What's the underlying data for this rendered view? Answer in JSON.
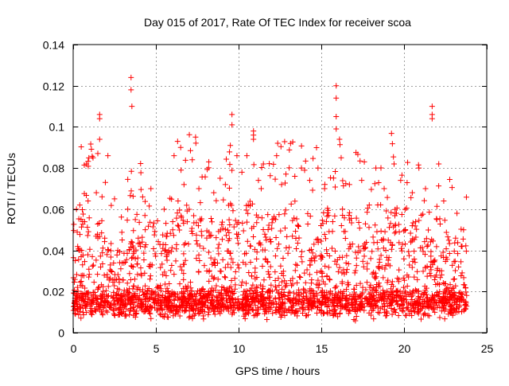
{
  "chart_data": {
    "type": "scatter",
    "title": "Day 015 of 2017, Rate Of TEC Index for receiver scoa",
    "xlabel": "GPS time / hours",
    "ylabel": "ROTI / TECUs",
    "xlim": [
      0,
      25
    ],
    "ylim": [
      0,
      0.14
    ],
    "xticks": [
      0,
      5,
      10,
      15,
      20,
      25
    ],
    "yticks": [
      0,
      0.02,
      0.04,
      0.06,
      0.08,
      0.1,
      0.12,
      0.14
    ],
    "xtick_labels": [
      "0",
      "5",
      "10",
      "15",
      "20",
      "25"
    ],
    "ytick_labels": [
      "0",
      "0.02",
      "0.04",
      "0.06",
      "0.08",
      "0.1",
      "0.12",
      "0.14"
    ],
    "grid": true,
    "legend": "none",
    "marker": "plus",
    "color": "#ff0000",
    "data_x_range": [
      0,
      23.8
    ],
    "series": [
      {
        "values_note_free": true,
        "points": [
          [
            3.5,
            0.124
          ],
          [
            3.5,
            0.118
          ],
          [
            3.55,
            0.11
          ],
          [
            1.6,
            0.106
          ],
          [
            1.6,
            0.104
          ],
          [
            1.6,
            0.094
          ],
          [
            9.6,
            0.106
          ],
          [
            9.6,
            0.101
          ],
          [
            9.5,
            0.091
          ],
          [
            10.9,
            0.098
          ],
          [
            10.9,
            0.096
          ],
          [
            10.9,
            0.094
          ],
          [
            15.9,
            0.12
          ],
          [
            15.9,
            0.114
          ],
          [
            15.9,
            0.105
          ],
          [
            15.9,
            0.099
          ],
          [
            16.1,
            0.094
          ],
          [
            21.7,
            0.11
          ],
          [
            21.7,
            0.106
          ],
          [
            21.7,
            0.104
          ],
          [
            6.5,
            0.09
          ],
          [
            6.1,
            0.086
          ],
          [
            1.2,
            0.085
          ],
          [
            0.8,
            0.082
          ],
          [
            2.1,
            0.086
          ],
          [
            7.2,
            0.084
          ],
          [
            8.2,
            0.083
          ],
          [
            9.9,
            0.086
          ],
          [
            10.5,
            0.086
          ],
          [
            11.5,
            0.082
          ],
          [
            12.3,
            0.086
          ],
          [
            13.8,
            0.08
          ],
          [
            14.8,
            0.08
          ],
          [
            16.2,
            0.085
          ],
          [
            17.6,
            0.083
          ],
          [
            18.3,
            0.08
          ],
          [
            19.4,
            0.082
          ],
          [
            20.9,
            0.08
          ],
          [
            22.1,
            0.082
          ],
          [
            0.2,
            0.06
          ],
          [
            0.4,
            0.062
          ],
          [
            0.9,
            0.064
          ],
          [
            1.4,
            0.068
          ],
          [
            2.7,
            0.04
          ],
          [
            3.3,
            0.06
          ],
          [
            4.2,
            0.066
          ],
          [
            4.7,
            0.07
          ],
          [
            5.5,
            0.06
          ],
          [
            6.7,
            0.072
          ],
          [
            7.6,
            0.07
          ],
          [
            8.5,
            0.068
          ],
          [
            9.2,
            0.072
          ],
          [
            10.2,
            0.078
          ],
          [
            11.2,
            0.074
          ],
          [
            12.6,
            0.072
          ],
          [
            13.4,
            0.076
          ],
          [
            14.3,
            0.074
          ],
          [
            15.2,
            0.07
          ],
          [
            16.7,
            0.072
          ],
          [
            17.9,
            0.062
          ],
          [
            18.8,
            0.07
          ],
          [
            19.8,
            0.074
          ],
          [
            20.5,
            0.068
          ],
          [
            21.3,
            0.07
          ],
          [
            22.4,
            0.064
          ],
          [
            23.2,
            0.058
          ],
          [
            23.6,
            0.05
          ]
        ]
      }
    ]
  }
}
